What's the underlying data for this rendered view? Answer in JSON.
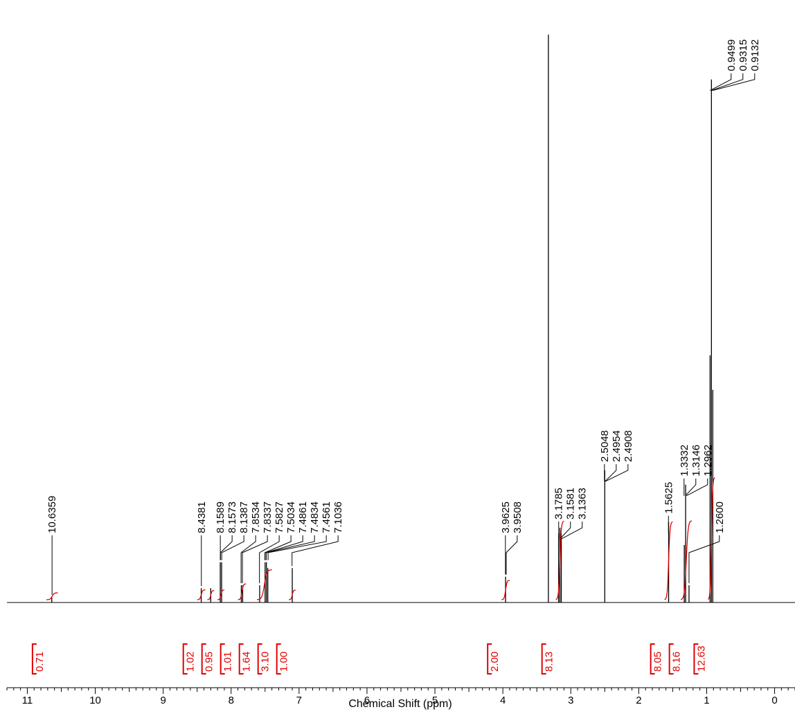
{
  "chart_data": {
    "type": "nmr",
    "x_label": "Chemical Shift (ppm)",
    "xlim": [
      11.3,
      -0.3
    ],
    "xticks": [
      11,
      10,
      9,
      8,
      7,
      6,
      5,
      4,
      3,
      2,
      1,
      0
    ],
    "ylim": [
      0,
      100
    ],
    "color": "#000000",
    "integral_color": "#e00000",
    "signals": {
      "shift": [
        10.64,
        8.44,
        8.3,
        8.16,
        8.14,
        7.85,
        7.83,
        7.58,
        7.5,
        7.48,
        7.46,
        7.1,
        3.96,
        3.33,
        3.18,
        3.16,
        3.14,
        2.5,
        1.56,
        1.33,
        1.31,
        1.26,
        0.95,
        0.93,
        0.91
      ],
      "height": [
        1,
        2.5,
        2.5,
        7,
        7,
        3,
        3,
        3,
        7,
        7,
        6,
        6,
        4.5,
        98.8,
        12,
        13,
        12,
        23,
        14,
        10,
        20.5,
        3,
        43,
        91,
        37
      ]
    },
    "peak_labels": [
      10.6359,
      8.4381,
      8.1589,
      8.1573,
      8.1387,
      7.8534,
      7.8337,
      7.5827,
      7.5034,
      7.4861,
      7.4834,
      7.4561,
      7.1036,
      3.9625,
      3.9508,
      3.1785,
      3.1581,
      3.1363,
      2.5048,
      2.4954,
      2.4908,
      1.5625,
      1.3332,
      1.3146,
      1.2962,
      {
        "value": 1.26,
        "label": "1.2600"
      },
      0.9499,
      0.9315,
      0.9132
    ],
    "integrals": [
      0.71,
      1.02,
      0.95,
      1.01,
      1.64,
      {
        "value": 3.1,
        "label": "3.10"
      },
      {
        "value": 1,
        "label": "1.00"
      },
      {
        "value": 2,
        "label": "2.00"
      },
      8.13,
      8.05,
      8.16,
      12.63
    ],
    "integral_ranges": [
      [
        10.72,
        10.55
      ],
      [
        8.5,
        8.38
      ],
      [
        8.35,
        8.25
      ],
      [
        8.2,
        8.1
      ],
      [
        7.9,
        7.78
      ],
      [
        7.62,
        7.4
      ],
      [
        7.15,
        7.05
      ],
      [
        4.02,
        3.9
      ],
      [
        3.22,
        3.1
      ],
      [
        1.62,
        1.5
      ],
      [
        1.38,
        1.22
      ],
      [
        0.98,
        0.88
      ]
    ]
  }
}
